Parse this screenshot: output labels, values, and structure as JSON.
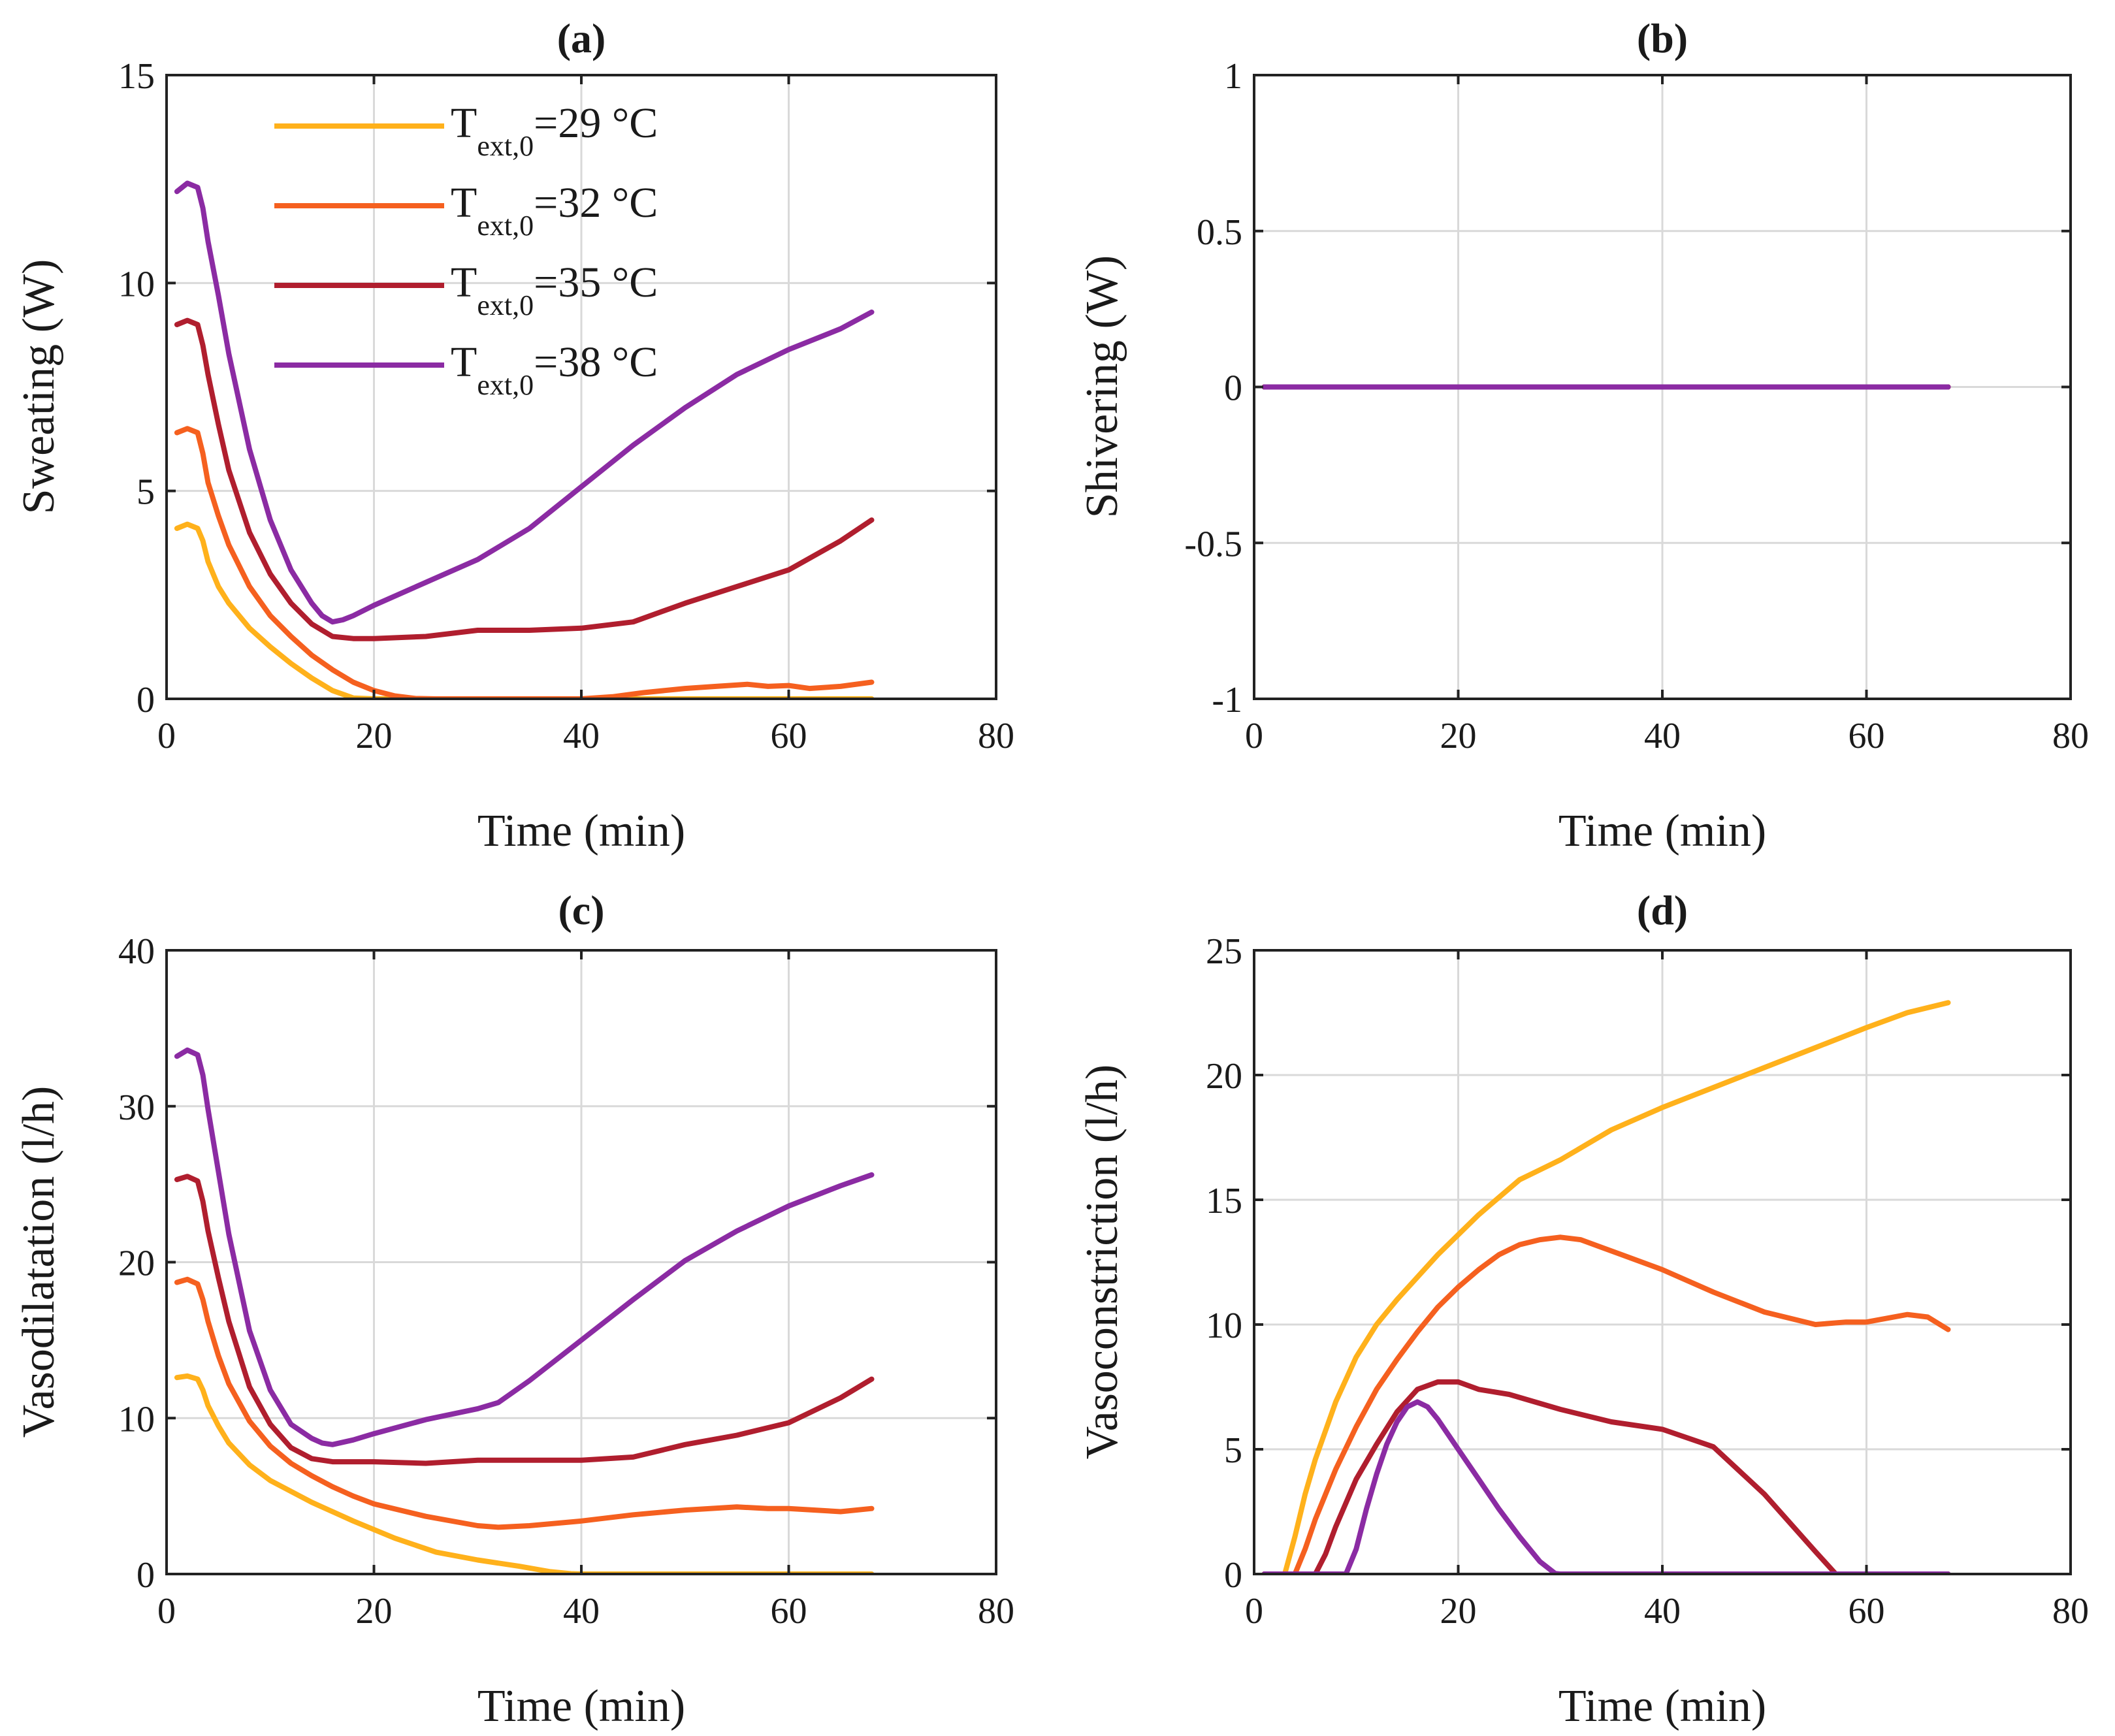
{
  "legend": {
    "entries": [
      {
        "main": "T",
        "sub": "ext,0",
        "value": "=29 °C",
        "color": "#ffb11b"
      },
      {
        "main": "T",
        "sub": "ext,0",
        "value": "=32 °C",
        "color": "#f5601f"
      },
      {
        "main": "T",
        "sub": "ext,0",
        "value": "=35 °C",
        "color": "#b01e2e"
      },
      {
        "main": "T",
        "sub": "ext,0",
        "value": "=38 °C",
        "color": "#8b2ba3"
      }
    ]
  },
  "chart_data": [
    {
      "id": "a",
      "type": "line",
      "title": "(a)",
      "xlabel": "Time (min)",
      "ylabel": "Sweating (W)",
      "xlim": [
        0,
        80
      ],
      "ylim": [
        0,
        15
      ],
      "xticks": [
        0,
        20,
        40,
        60,
        80
      ],
      "yticks": [
        0,
        5,
        10,
        15
      ],
      "xtick_labels": [
        "0",
        "20",
        "40",
        "60",
        "80"
      ],
      "ytick_labels": [
        "0",
        "5",
        "10",
        "15"
      ],
      "grid": true,
      "legend_position": "top-left",
      "series": [
        {
          "name": "Text,0=29 °C",
          "color": "#ffb11b",
          "x": [
            1,
            2,
            3,
            3.5,
            4,
            5,
            6,
            8,
            10,
            12,
            14,
            16,
            18,
            20,
            25,
            30,
            40,
            50,
            60,
            68
          ],
          "y": [
            4.1,
            4.2,
            4.1,
            3.8,
            3.3,
            2.7,
            2.3,
            1.7,
            1.25,
            0.85,
            0.5,
            0.2,
            0.02,
            0,
            0,
            0,
            0,
            0,
            0,
            0
          ]
        },
        {
          "name": "Text,0=32 °C",
          "color": "#f5601f",
          "x": [
            1,
            2,
            3,
            3.5,
            4,
            5,
            6,
            8,
            10,
            12,
            14,
            16,
            18,
            20,
            22,
            24,
            26,
            30,
            35,
            40,
            43,
            46,
            50,
            53,
            56,
            58,
            60,
            62,
            65,
            68
          ],
          "y": [
            6.4,
            6.5,
            6.4,
            5.9,
            5.2,
            4.4,
            3.7,
            2.7,
            2.0,
            1.5,
            1.05,
            0.7,
            0.4,
            0.2,
            0.07,
            0.01,
            0,
            0,
            0,
            0,
            0.05,
            0.15,
            0.25,
            0.3,
            0.35,
            0.3,
            0.32,
            0.25,
            0.3,
            0.4
          ]
        },
        {
          "name": "Text,0=35 °C",
          "color": "#b01e2e",
          "x": [
            1,
            2,
            3,
            3.5,
            4,
            5,
            6,
            8,
            10,
            12,
            14,
            16,
            18,
            20,
            25,
            30,
            35,
            40,
            45,
            50,
            55,
            60,
            65,
            68
          ],
          "y": [
            9.0,
            9.1,
            9.0,
            8.5,
            7.8,
            6.6,
            5.5,
            4.0,
            3.0,
            2.3,
            1.8,
            1.5,
            1.45,
            1.45,
            1.5,
            1.65,
            1.65,
            1.7,
            1.85,
            2.3,
            2.7,
            3.1,
            3.8,
            4.3
          ]
        },
        {
          "name": "Text,0=38 °C",
          "color": "#8b2ba3",
          "x": [
            1,
            2,
            3,
            3.5,
            4,
            5,
            6,
            8,
            10,
            12,
            14,
            15,
            16,
            17,
            18,
            20,
            25,
            30,
            35,
            40,
            45,
            50,
            55,
            60,
            65,
            68
          ],
          "y": [
            12.2,
            12.4,
            12.3,
            11.8,
            11.0,
            9.7,
            8.3,
            6.0,
            4.3,
            3.1,
            2.3,
            2.0,
            1.85,
            1.9,
            2.0,
            2.25,
            2.8,
            3.35,
            4.1,
            5.1,
            6.1,
            7.0,
            7.8,
            8.4,
            8.9,
            9.3
          ]
        }
      ]
    },
    {
      "id": "b",
      "type": "line",
      "title": "(b)",
      "xlabel": "Time (min)",
      "ylabel": "Shivering (W)",
      "xlim": [
        0,
        80
      ],
      "ylim": [
        -1,
        1
      ],
      "xticks": [
        0,
        20,
        40,
        60,
        80
      ],
      "yticks": [
        -1,
        -0.5,
        0,
        0.5,
        1
      ],
      "xtick_labels": [
        "0",
        "20",
        "40",
        "60",
        "80"
      ],
      "ytick_labels": [
        "-1",
        "-0.5",
        "0",
        "0.5",
        "1"
      ],
      "grid": true,
      "series": [
        {
          "name": "Text,0=29 °C",
          "color": "#ffb11b",
          "x": [
            1,
            68
          ],
          "y": [
            0,
            0
          ]
        },
        {
          "name": "Text,0=32 °C",
          "color": "#f5601f",
          "x": [
            1,
            68
          ],
          "y": [
            0,
            0
          ]
        },
        {
          "name": "Text,0=35 °C",
          "color": "#b01e2e",
          "x": [
            1,
            68
          ],
          "y": [
            0,
            0
          ]
        },
        {
          "name": "Text,0=38 °C",
          "color": "#8b2ba3",
          "x": [
            1,
            68
          ],
          "y": [
            0,
            0
          ]
        }
      ]
    },
    {
      "id": "c",
      "type": "line",
      "title": "(c)",
      "xlabel": "Time (min)",
      "ylabel": "Vasodilatation (l/h)",
      "xlim": [
        0,
        80
      ],
      "ylim": [
        0,
        40
      ],
      "xticks": [
        0,
        20,
        40,
        60,
        80
      ],
      "yticks": [
        0,
        10,
        20,
        30,
        40
      ],
      "xtick_labels": [
        "0",
        "20",
        "40",
        "60",
        "80"
      ],
      "ytick_labels": [
        "0",
        "10",
        "20",
        "30",
        "40"
      ],
      "grid": true,
      "series": [
        {
          "name": "Text,0=29 °C",
          "color": "#ffb11b",
          "x": [
            1,
            2,
            3,
            3.5,
            4,
            5,
            6,
            8,
            10,
            14,
            18,
            22,
            26,
            30,
            34,
            37,
            39,
            40,
            50,
            60,
            68
          ],
          "y": [
            12.6,
            12.7,
            12.5,
            11.8,
            10.8,
            9.5,
            8.4,
            7.0,
            6.0,
            4.6,
            3.4,
            2.3,
            1.4,
            0.9,
            0.5,
            0.15,
            0.02,
            0,
            0,
            0,
            0
          ]
        },
        {
          "name": "Text,0=32 °C",
          "color": "#f5601f",
          "x": [
            1,
            2,
            3,
            3.5,
            4,
            5,
            6,
            8,
            10,
            12,
            14,
            16,
            18,
            20,
            25,
            30,
            32,
            35,
            40,
            45,
            50,
            55,
            58,
            60,
            65,
            68
          ],
          "y": [
            18.7,
            18.9,
            18.6,
            17.6,
            16.2,
            14.0,
            12.2,
            9.8,
            8.2,
            7.1,
            6.3,
            5.6,
            5.0,
            4.5,
            3.7,
            3.1,
            3.0,
            3.1,
            3.4,
            3.8,
            4.1,
            4.3,
            4.2,
            4.2,
            4.0,
            4.2
          ]
        },
        {
          "name": "Text,0=35 °C",
          "color": "#b01e2e",
          "x": [
            1,
            2,
            3,
            3.5,
            4,
            5,
            6,
            8,
            10,
            12,
            14,
            16,
            18,
            20,
            25,
            30,
            35,
            40,
            45,
            50,
            55,
            60,
            65,
            68
          ],
          "y": [
            25.3,
            25.5,
            25.2,
            23.9,
            22.0,
            19.0,
            16.2,
            12.0,
            9.6,
            8.1,
            7.4,
            7.2,
            7.2,
            7.2,
            7.1,
            7.3,
            7.3,
            7.3,
            7.5,
            8.3,
            8.9,
            9.7,
            11.3,
            12.5
          ]
        },
        {
          "name": "Text,0=38 °C",
          "color": "#8b2ba3",
          "x": [
            1,
            2,
            3,
            3.5,
            4,
            5,
            6,
            8,
            10,
            12,
            14,
            15,
            16,
            18,
            20,
            25,
            30,
            32,
            35,
            40,
            45,
            50,
            55,
            60,
            65,
            68
          ],
          "y": [
            33.2,
            33.6,
            33.3,
            32.0,
            29.8,
            25.8,
            21.8,
            15.6,
            11.8,
            9.6,
            8.7,
            8.4,
            8.3,
            8.6,
            9.0,
            9.9,
            10.6,
            11.0,
            12.4,
            15.0,
            17.6,
            20.1,
            22.0,
            23.6,
            24.9,
            25.6
          ]
        }
      ]
    },
    {
      "id": "d",
      "type": "line",
      "title": "(d)",
      "xlabel": "Time (min)",
      "ylabel": "Vasoconstriction (l/h)",
      "xlim": [
        0,
        80
      ],
      "ylim": [
        0,
        25
      ],
      "xticks": [
        0,
        20,
        40,
        60,
        80
      ],
      "yticks": [
        0,
        5,
        10,
        15,
        20,
        25
      ],
      "xtick_labels": [
        "0",
        "20",
        "40",
        "60",
        "80"
      ],
      "ytick_labels": [
        "0",
        "5",
        "10",
        "15",
        "20",
        "25"
      ],
      "grid": true,
      "series": [
        {
          "name": "Text,0=29 °C",
          "color": "#ffb11b",
          "x": [
            1,
            3,
            4,
            5,
            6,
            8,
            10,
            12,
            14,
            16,
            18,
            20,
            22,
            24,
            26,
            28,
            30,
            35,
            40,
            45,
            50,
            55,
            60,
            64,
            68
          ],
          "y": [
            0,
            0,
            1.5,
            3.2,
            4.6,
            6.9,
            8.7,
            10.0,
            11.0,
            11.9,
            12.8,
            13.6,
            14.4,
            15.1,
            15.8,
            16.2,
            16.6,
            17.8,
            18.7,
            19.5,
            20.3,
            21.1,
            21.9,
            22.5,
            22.9
          ]
        },
        {
          "name": "Text,0=32 °C",
          "color": "#f5601f",
          "x": [
            1,
            4,
            5,
            6,
            8,
            10,
            12,
            14,
            16,
            18,
            20,
            22,
            24,
            26,
            28,
            30,
            32,
            34,
            36,
            40,
            45,
            50,
            55,
            58,
            60,
            64,
            66,
            68
          ],
          "y": [
            0,
            0,
            1.0,
            2.2,
            4.2,
            5.9,
            7.4,
            8.6,
            9.7,
            10.7,
            11.5,
            12.2,
            12.8,
            13.2,
            13.4,
            13.5,
            13.4,
            13.1,
            12.8,
            12.2,
            11.3,
            10.5,
            10.0,
            10.1,
            10.1,
            10.4,
            10.3,
            9.8
          ]
        },
        {
          "name": "Text,0=35 °C",
          "color": "#b01e2e",
          "x": [
            1,
            6,
            7,
            8,
            10,
            12,
            14,
            16,
            18,
            20,
            22,
            25,
            30,
            35,
            40,
            45,
            50,
            55,
            57,
            60,
            68
          ],
          "y": [
            0,
            0,
            0.8,
            1.9,
            3.8,
            5.2,
            6.5,
            7.4,
            7.7,
            7.7,
            7.4,
            7.2,
            6.6,
            6.1,
            5.8,
            5.1,
            3.2,
            0.9,
            0,
            0,
            0
          ]
        },
        {
          "name": "Text,0=38 °C",
          "color": "#8b2ba3",
          "x": [
            1,
            9,
            10,
            11,
            12,
            13,
            14,
            15,
            16,
            17,
            18,
            20,
            22,
            24,
            26,
            28,
            29.5,
            30,
            40,
            50,
            60,
            68
          ],
          "y": [
            0,
            0,
            1.0,
            2.6,
            4.0,
            5.2,
            6.1,
            6.7,
            6.9,
            6.7,
            6.2,
            5.0,
            3.8,
            2.6,
            1.5,
            0.5,
            0.02,
            0,
            0,
            0,
            0,
            0
          ]
        }
      ]
    }
  ]
}
